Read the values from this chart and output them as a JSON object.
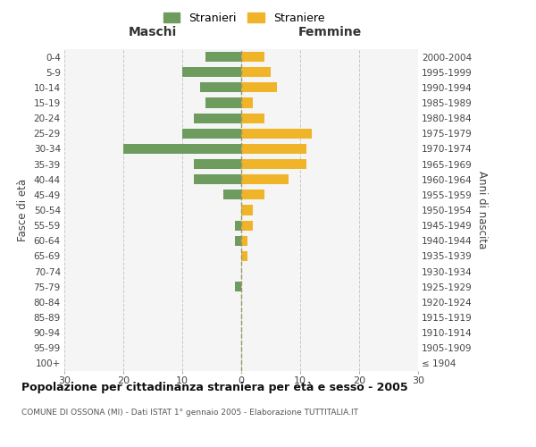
{
  "age_groups": [
    "100+",
    "95-99",
    "90-94",
    "85-89",
    "80-84",
    "75-79",
    "70-74",
    "65-69",
    "60-64",
    "55-59",
    "50-54",
    "45-49",
    "40-44",
    "35-39",
    "30-34",
    "25-29",
    "20-24",
    "15-19",
    "10-14",
    "5-9",
    "0-4"
  ],
  "birth_years": [
    "≤ 1904",
    "1905-1909",
    "1910-1914",
    "1915-1919",
    "1920-1924",
    "1925-1929",
    "1930-1934",
    "1935-1939",
    "1940-1944",
    "1945-1949",
    "1950-1954",
    "1955-1959",
    "1960-1964",
    "1965-1969",
    "1970-1974",
    "1975-1979",
    "1980-1984",
    "1985-1989",
    "1990-1994",
    "1995-1999",
    "2000-2004"
  ],
  "maschi": [
    0,
    0,
    0,
    0,
    0,
    1,
    0,
    0,
    1,
    1,
    0,
    3,
    8,
    8,
    20,
    10,
    8,
    6,
    7,
    10,
    6
  ],
  "femmine": [
    0,
    0,
    0,
    0,
    0,
    0,
    0,
    1,
    1,
    2,
    2,
    4,
    8,
    11,
    11,
    12,
    4,
    2,
    6,
    5,
    4
  ],
  "maschi_color": "#6e9b5e",
  "femmine_color": "#f0b429",
  "background_color": "#f5f5f5",
  "grid_color": "#c8c8c8",
  "title": "Popolazione per cittadinanza straniera per età e sesso - 2005",
  "subtitle": "COMUNE DI OSSONA (MI) - Dati ISTAT 1° gennaio 2005 - Elaborazione TUTTITALIA.IT",
  "label_maschi": "Maschi",
  "label_femmine": "Femmine",
  "ylabel_left": "Fasce di età",
  "ylabel_right": "Anni di nascita",
  "xlim": 30,
  "legend_stranieri": "Stranieri",
  "legend_straniere": "Straniere"
}
